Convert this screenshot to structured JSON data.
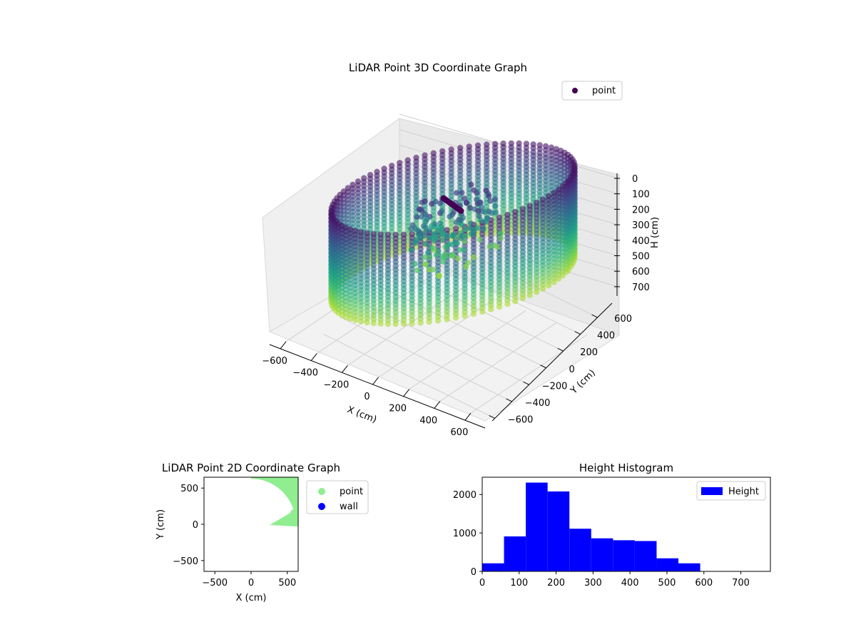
{
  "chart_data": [
    {
      "type": "scatter",
      "projection": "3d",
      "title": "LiDAR Point 3D Coordinate Graph",
      "xlabel": "X (cm)",
      "ylabel": "Y (cm)",
      "zlabel": "H (cm)",
      "xlim": [
        -650,
        650
      ],
      "ylim": [
        -650,
        650
      ],
      "zlim": [
        0,
        760
      ],
      "z_inverted": true,
      "xticks": [
        "−600",
        "−400",
        "−200",
        "0",
        "200",
        "400",
        "600"
      ],
      "yticks": [
        "−600",
        "−400",
        "−200",
        "0",
        "200",
        "400",
        "600"
      ],
      "zticks": [
        "0",
        "100",
        "200",
        "300",
        "400",
        "500",
        "600",
        "700"
      ],
      "legend": {
        "position": "top-right",
        "entries": [
          "point"
        ]
      },
      "colormap": "viridis",
      "grid": true,
      "series": [
        {
          "name": "point",
          "description": "cylindrical wall of points, radius about 600 cm, height 0 to 760 cm, with interior clutter",
          "wall_radius": 600,
          "height_range": [
            0,
            760
          ]
        }
      ]
    },
    {
      "type": "scatter",
      "title": "LiDAR Point 2D Coordinate Graph",
      "xlabel": "X (cm)",
      "ylabel": "Y (cm)",
      "xlim": [
        -650,
        650
      ],
      "ylim": [
        -650,
        650
      ],
      "xticks": [
        "−500",
        "0",
        "500"
      ],
      "yticks": [
        "−500",
        "0",
        "500"
      ],
      "legend": {
        "position": "outside-right",
        "entries": [
          "point",
          "wall"
        ]
      },
      "series": [
        {
          "name": "point",
          "color": "#90ee90",
          "shape": "disc",
          "radius": 620
        },
        {
          "name": "wall",
          "color": "#0000ff"
        }
      ]
    },
    {
      "type": "bar",
      "title": "Height Histogram",
      "xlim": [
        0,
        780
      ],
      "ylim": [
        0,
        2450
      ],
      "xticks": [
        "0",
        "100",
        "200",
        "300",
        "400",
        "500",
        "600",
        "700"
      ],
      "yticks": [
        "0",
        "1000",
        "2000"
      ],
      "legend": {
        "position": "top-right",
        "entries": [
          "Height"
        ]
      },
      "series": [
        {
          "name": "Height",
          "color": "#0000ff",
          "bin_edges": [
            0,
            59,
            118,
            177,
            236,
            295,
            354,
            413,
            472,
            531,
            590,
            649,
            708,
            767
          ],
          "counts": [
            210,
            910,
            2310,
            2080,
            1110,
            860,
            810,
            790,
            340,
            210,
            0,
            0,
            0
          ]
        }
      ]
    }
  ]
}
